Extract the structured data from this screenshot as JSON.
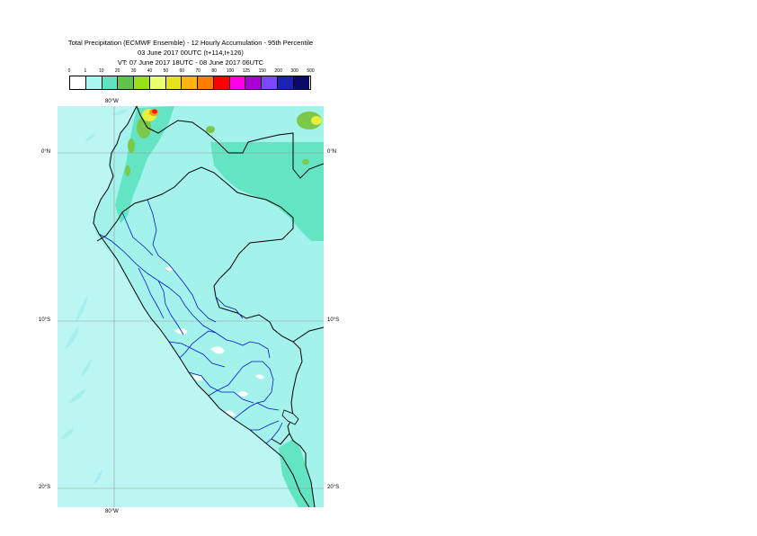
{
  "title": {
    "line1": "Total Precipitation (ECMWF Ensemble) - 12 Hourly Accumulation - 95th Percentile",
    "line2": "03 June 2017 00UTC (t+114,t+126)",
    "line3": "VT: 07 June 2017 18UTC - 08 June 2017 06UTC"
  },
  "legend": {
    "ticks": [
      "0",
      "1",
      "10",
      "20",
      "30",
      "40",
      "50",
      "60",
      "70",
      "80",
      "100",
      "125",
      "150",
      "200",
      "300",
      "500"
    ],
    "colors": [
      "#ffffff",
      "#a9f7f1",
      "#5fe3c0",
      "#5ec44b",
      "#98e01a",
      "#eaff6e",
      "#e6e21a",
      "#ffb414",
      "#ff7d00",
      "#ff0000",
      "#ff00e6",
      "#a800d2",
      "#7d49ff",
      "#1c22b4",
      "#0a0a6a"
    ]
  },
  "map": {
    "colors": {
      "ocean": "#bbf6f3",
      "land_light": "#a4f2ec",
      "land_medium": "#63e5c3",
      "green": "#7cc84a",
      "yellow": "#e6ef3a",
      "orange": "#ff9a10",
      "red": "#ff1010",
      "dry": "#ffffff",
      "coast": "#000000",
      "admin": "#0018c8",
      "grid": "#9c9c9c"
    },
    "axis_labels": {
      "top_lon": "80°W",
      "bottom_lon": "80°W",
      "lat_0": "0°N",
      "lat_10": "10°S",
      "lat_20": "20°S"
    }
  }
}
